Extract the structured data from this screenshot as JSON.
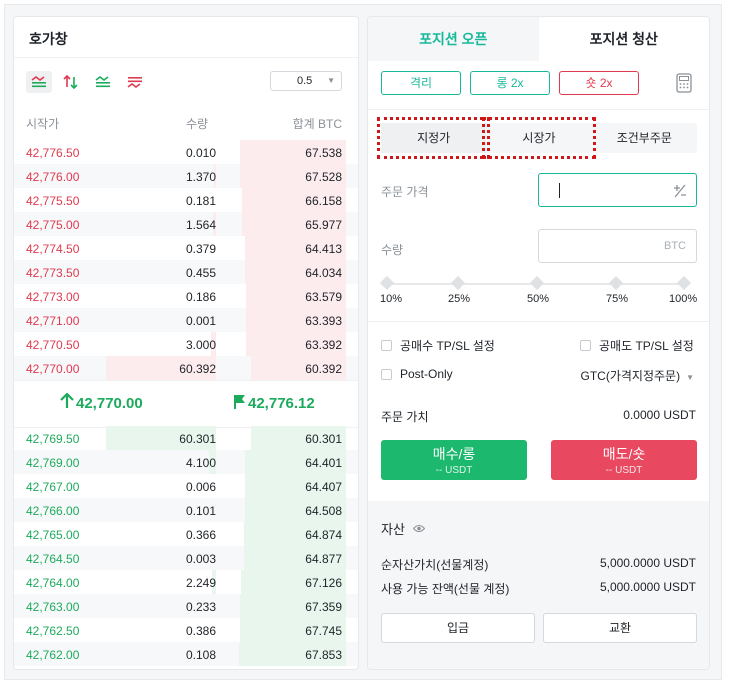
{
  "orderbook": {
    "title": "호가창",
    "precision": "0.5",
    "headers": {
      "price": "시작가",
      "qty": "수량",
      "total": "합계 BTC"
    },
    "asks": [
      {
        "price": "42,776.50",
        "qty": "0.010",
        "total": "67.538"
      },
      {
        "price": "42,776.00",
        "qty": "1.370",
        "total": "67.528"
      },
      {
        "price": "42,775.50",
        "qty": "0.181",
        "total": "66.158"
      },
      {
        "price": "42,775.00",
        "qty": "1.564",
        "total": "65.977"
      },
      {
        "price": "42,774.50",
        "qty": "0.379",
        "total": "64.413"
      },
      {
        "price": "42,773.50",
        "qty": "0.455",
        "total": "64.034"
      },
      {
        "price": "42,773.00",
        "qty": "0.186",
        "total": "63.579"
      },
      {
        "price": "42,771.00",
        "qty": "0.001",
        "total": "63.393"
      },
      {
        "price": "42,770.50",
        "qty": "3.000",
        "total": "63.392"
      },
      {
        "price": "42,770.00",
        "qty": "60.392",
        "total": "60.392"
      }
    ],
    "last_price": "42,770.00",
    "mark_price": "42,776.12",
    "bids": [
      {
        "price": "42,769.50",
        "qty": "60.301",
        "total": "60.301"
      },
      {
        "price": "42,769.00",
        "qty": "4.100",
        "total": "64.401"
      },
      {
        "price": "42,767.00",
        "qty": "0.006",
        "total": "64.407"
      },
      {
        "price": "42,766.00",
        "qty": "0.101",
        "total": "64.508"
      },
      {
        "price": "42,765.00",
        "qty": "0.366",
        "total": "64.874"
      },
      {
        "price": "42,764.50",
        "qty": "0.003",
        "total": "64.877"
      },
      {
        "price": "42,764.00",
        "qty": "2.249",
        "total": "67.126"
      },
      {
        "price": "42,763.00",
        "qty": "0.233",
        "total": "67.359"
      },
      {
        "price": "42,762.50",
        "qty": "0.386",
        "total": "67.745"
      },
      {
        "price": "42,762.00",
        "qty": "0.108",
        "total": "67.853"
      }
    ],
    "colors": {
      "ask": "#e0394f",
      "bid": "#1cab5d"
    }
  },
  "order_panel": {
    "tabs": {
      "open": "포지션 오픈",
      "close": "포지션 청산"
    },
    "margin_mode": "격리",
    "long_leverage": "롱 2x",
    "short_leverage": "숏 2x",
    "order_types": {
      "limit": "지정가",
      "market": "시장가",
      "conditional": "조건부주문"
    },
    "price_label": "주문 가격",
    "qty_label": "수량",
    "qty_unit": "BTC",
    "slider_marks": [
      "10%",
      "25%",
      "50%",
      "75%",
      "100%"
    ],
    "tp_long": "공매수 TP/SL 설정",
    "tp_short": "공매도 TP/SL 설정",
    "post_only": "Post-Only",
    "time_in_force": "GTC(가격지정주문)",
    "order_value_label": "주문 가치",
    "order_value": "0.0000 USDT",
    "buy_label": "매수/롱",
    "buy_sub": "-- USDT",
    "sell_label": "매도/숏",
    "sell_sub": "-- USDT",
    "assets_title": "자산",
    "equity_label": "순자산가치(선물계정)",
    "equity_value": "5,000.0000 USDT",
    "available_label": "사용 가능 잔액(선물 계정)",
    "available_value": "5,000.0000 USDT",
    "deposit": "입금",
    "exchange": "교환",
    "accent": "#17b89a"
  }
}
